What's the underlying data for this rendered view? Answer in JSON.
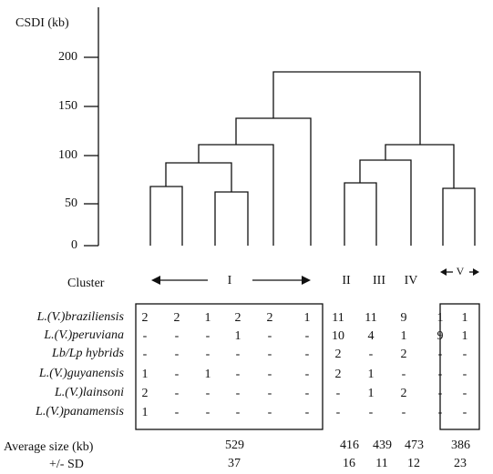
{
  "axis": {
    "title": "CSDI (kb)",
    "ticks": [
      "200",
      "150",
      "100",
      "50",
      "0"
    ]
  },
  "clusters": {
    "row_label": "Cluster",
    "labels": [
      "I",
      "II",
      "III",
      "IV",
      "V"
    ]
  },
  "species": [
    "L.(V.)braziliensis",
    "L.(V.)peruviana",
    "Lb/Lp hybrids",
    "L.(V.)guyanensis",
    "L.(V.)lainsoni",
    "L.(V.)panamensis"
  ],
  "table": {
    "rows": [
      [
        "2",
        "2",
        "1",
        "2",
        "2",
        "1",
        "11",
        "11",
        "9",
        "1",
        "1"
      ],
      [
        "-",
        "-",
        "-",
        "1",
        "-",
        "-",
        "10",
        "4",
        "1",
        "9",
        "1"
      ],
      [
        "-",
        "-",
        "-",
        "-",
        "-",
        "-",
        "2",
        "-",
        "2",
        "-",
        "-"
      ],
      [
        "1",
        "-",
        "1",
        "-",
        "-",
        "-",
        "2",
        "1",
        "-",
        "-",
        "-"
      ],
      [
        "2",
        "-",
        "-",
        "-",
        "-",
        "-",
        "-",
        "1",
        "2",
        "-",
        "-"
      ],
      [
        "1",
        "-",
        "-",
        "-",
        "-",
        "-",
        "-",
        "-",
        "-",
        "-",
        "-"
      ]
    ]
  },
  "summary": {
    "avg_label": "Average size (kb)",
    "sd_label": "+/- SD",
    "avg": [
      "529",
      "416",
      "439",
      "473",
      "386"
    ],
    "sd": [
      "37",
      "16",
      "11",
      "12",
      "23"
    ]
  }
}
